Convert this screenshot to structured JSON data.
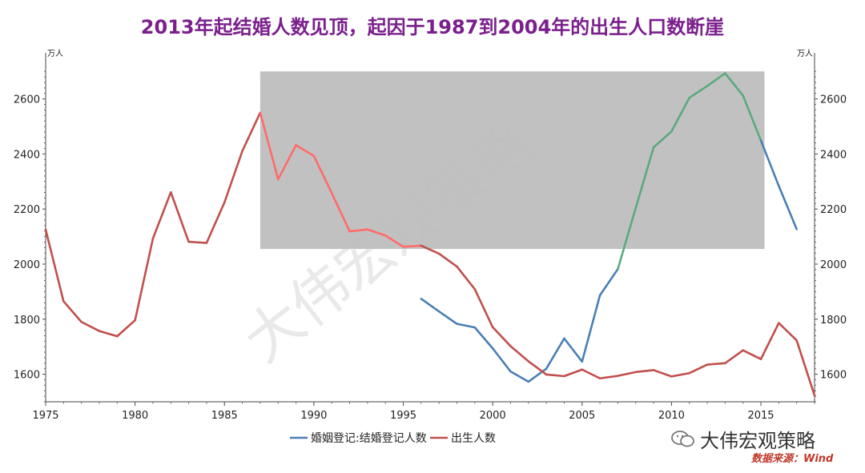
{
  "title": "2013年起结婚人数见顶，起因于1987到2004年的出生人口数断崖",
  "watermark": "大伟宏观策略",
  "brand": "大伟宏观策略",
  "source": "数据来源：Wind",
  "chart_data": {
    "type": "line",
    "unit_left": "万人",
    "unit_right": "万人",
    "xlim": [
      1975,
      2018
    ],
    "ylim": [
      1500,
      2750
    ],
    "x_ticks": [
      1975,
      1980,
      1985,
      1990,
      1995,
      2000,
      2005,
      2010,
      2015
    ],
    "y_ticks": [
      1600,
      1800,
      2000,
      2200,
      2400,
      2600
    ],
    "highlight_box": {
      "x": [
        1987,
        2015.2
      ],
      "y": [
        2055,
        2700
      ],
      "color": "#bcbcbc"
    },
    "series": [
      {
        "name": "婚姻登记:结婚登记人数",
        "color": "#4a7fb5",
        "highlight_color": "#5aaa7f",
        "x": [
          1996,
          1997,
          1998,
          1999,
          2000,
          2001,
          2002,
          2003,
          2004,
          2005,
          2006,
          2007,
          2008,
          2009,
          2010,
          2011,
          2012,
          2013,
          2014,
          2015,
          2016,
          2017
        ],
        "y": [
          1874,
          1828,
          1783,
          1770,
          1694,
          1610,
          1573,
          1620,
          1730,
          1646,
          1887,
          1982,
          2204,
          2424,
          2482,
          2604,
          2647,
          2693,
          2612,
          2449,
          2284,
          2127
        ]
      },
      {
        "name": "出生人数",
        "color": "#c0504d",
        "highlight_color": "#ff6b6b",
        "x": [
          1975,
          1976,
          1977,
          1978,
          1979,
          1980,
          1981,
          1982,
          1983,
          1984,
          1985,
          1986,
          1987,
          1988,
          1989,
          1990,
          1991,
          1992,
          1993,
          1994,
          1995,
          1996,
          1997,
          1998,
          1999,
          2000,
          2001,
          2002,
          2003,
          2004,
          2005,
          2006,
          2007,
          2008,
          2009,
          2010,
          2011,
          2012,
          2013,
          2014,
          2015,
          2016,
          2017,
          2018
        ],
        "y": [
          2126,
          1865,
          1790,
          1757,
          1738,
          1796,
          2093,
          2261,
          2081,
          2077,
          2224,
          2411,
          2550,
          2308,
          2432,
          2393,
          2258,
          2119,
          2126,
          2104,
          2063,
          2067,
          2038,
          1991,
          1909,
          1771,
          1702,
          1647,
          1599,
          1593,
          1617,
          1585,
          1594,
          1608,
          1615,
          1592,
          1604,
          1635,
          1640,
          1687,
          1655,
          1786,
          1723,
          1523
        ]
      }
    ],
    "legend_position": "bottom-center"
  }
}
